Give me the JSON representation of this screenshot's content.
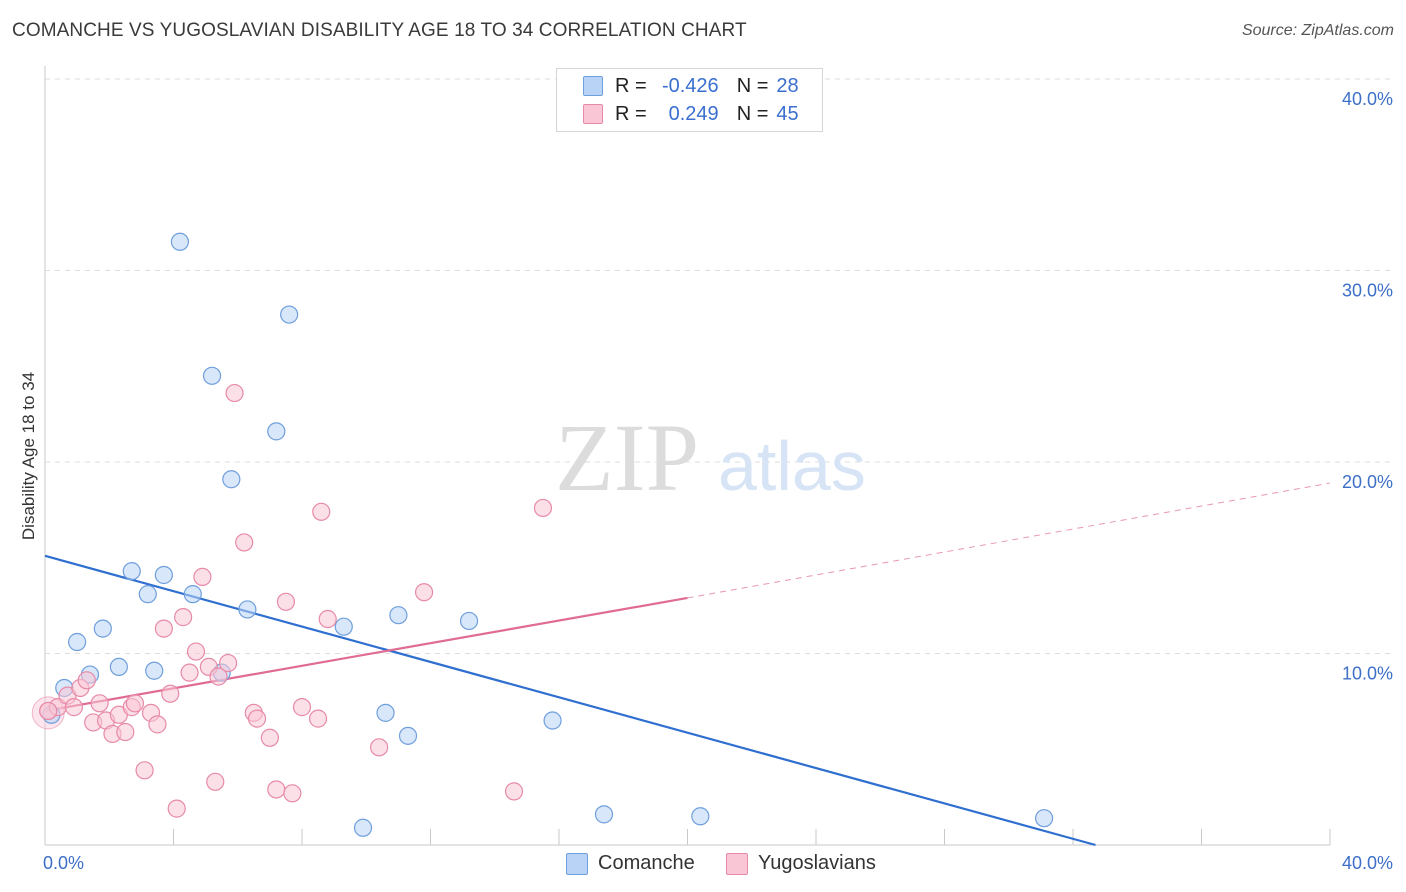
{
  "header": {
    "title": "COMANCHE VS YUGOSLAVIAN DISABILITY AGE 18 TO 34 CORRELATION CHART",
    "source": "Source: ZipAtlas.com"
  },
  "watermark": {
    "zip": "ZIP",
    "atlas": "atlas"
  },
  "legend": {
    "rows": [
      {
        "r_label": "R =",
        "r_value": "-0.426",
        "n_label": "N =",
        "n_value": "28"
      },
      {
        "r_label": "R =",
        "r_value": "0.249",
        "n_label": "N =",
        "n_value": "45"
      }
    ]
  },
  "colors": {
    "comanche_fill": "#b8d3f5",
    "comanche_stroke": "#6f9fdc",
    "comanche_line": "#2f6fd0",
    "yugo_fill": "#f9c6d6",
    "yugo_stroke": "#e78aa8",
    "yugo_line": "#e06b93",
    "tick_label": "#3d6fc8",
    "grid": "#dedede"
  },
  "chart_data": {
    "type": "scatter",
    "ylabel": "Disability Age 18 to 34",
    "xlim": [
      0,
      40
    ],
    "ylim": [
      0,
      40
    ],
    "x_tick_labels": [
      "0.0%",
      "40.0%"
    ],
    "y_ticks": [
      10,
      20,
      30,
      40
    ],
    "y_tick_labels": [
      "10.0%",
      "20.0%",
      "30.0%",
      "40.0%"
    ],
    "grid": true,
    "series": [
      {
        "name": "Comanche",
        "points": [
          [
            0.2,
            6.8
          ],
          [
            0.6,
            8.2
          ],
          [
            1.0,
            10.6
          ],
          [
            1.4,
            8.9
          ],
          [
            1.8,
            11.3
          ],
          [
            2.3,
            9.3
          ],
          [
            2.7,
            14.3
          ],
          [
            3.2,
            13.1
          ],
          [
            3.4,
            9.1
          ],
          [
            3.7,
            14.1
          ],
          [
            4.2,
            31.5
          ],
          [
            4.6,
            13.1
          ],
          [
            5.2,
            24.5
          ],
          [
            5.5,
            9.0
          ],
          [
            5.8,
            19.1
          ],
          [
            6.3,
            12.3
          ],
          [
            7.2,
            21.6
          ],
          [
            7.6,
            27.7
          ],
          [
            9.3,
            11.4
          ],
          [
            9.9,
            0.9
          ],
          [
            10.6,
            6.9
          ],
          [
            11.0,
            12.0
          ],
          [
            11.3,
            5.7
          ],
          [
            13.2,
            11.7
          ],
          [
            15.8,
            6.5
          ],
          [
            17.4,
            1.6
          ],
          [
            20.4,
            1.5
          ],
          [
            31.1,
            1.4
          ]
        ]
      },
      {
        "name": "Yugoslavians",
        "points": [
          [
            0.1,
            7.0
          ],
          [
            0.4,
            7.2
          ],
          [
            0.7,
            7.8
          ],
          [
            0.9,
            7.2
          ],
          [
            1.1,
            8.2
          ],
          [
            1.3,
            8.6
          ],
          [
            1.5,
            6.4
          ],
          [
            1.7,
            7.4
          ],
          [
            1.9,
            6.5
          ],
          [
            2.1,
            5.8
          ],
          [
            2.3,
            6.8
          ],
          [
            2.5,
            5.9
          ],
          [
            2.7,
            7.2
          ],
          [
            2.8,
            7.4
          ],
          [
            3.1,
            3.9
          ],
          [
            3.3,
            6.9
          ],
          [
            3.5,
            6.3
          ],
          [
            3.7,
            11.3
          ],
          [
            3.9,
            7.9
          ],
          [
            4.1,
            1.9
          ],
          [
            4.3,
            11.9
          ],
          [
            4.5,
            9.0
          ],
          [
            4.7,
            10.1
          ],
          [
            4.9,
            14.0
          ],
          [
            5.1,
            9.3
          ],
          [
            5.3,
            3.3
          ],
          [
            5.4,
            8.8
          ],
          [
            5.7,
            9.5
          ],
          [
            5.9,
            23.6
          ],
          [
            6.2,
            15.8
          ],
          [
            6.5,
            6.9
          ],
          [
            6.6,
            6.6
          ],
          [
            7.0,
            5.6
          ],
          [
            7.2,
            2.9
          ],
          [
            7.5,
            12.7
          ],
          [
            7.7,
            2.7
          ],
          [
            8.0,
            7.2
          ],
          [
            8.5,
            6.6
          ],
          [
            8.6,
            17.4
          ],
          [
            8.8,
            11.8
          ],
          [
            10.4,
            5.1
          ],
          [
            11.8,
            13.2
          ],
          [
            14.6,
            2.8
          ],
          [
            15.5,
            17.6
          ],
          [
            0.1,
            7.0
          ]
        ]
      }
    ],
    "trendlines": [
      {
        "series": "Comanche",
        "x0": 0,
        "y0": 15.1,
        "x1": 32.7,
        "y1": 0.0,
        "style": "solid"
      },
      {
        "series": "Yugoslavians",
        "x0": 0,
        "y0": 7.0,
        "x1": 20.0,
        "y1": 12.9,
        "style": "solid"
      },
      {
        "series": "Yugoslavians",
        "x0": 20.0,
        "y0": 12.9,
        "x1": 40,
        "y1": 18.9,
        "style": "dashed"
      }
    ]
  }
}
